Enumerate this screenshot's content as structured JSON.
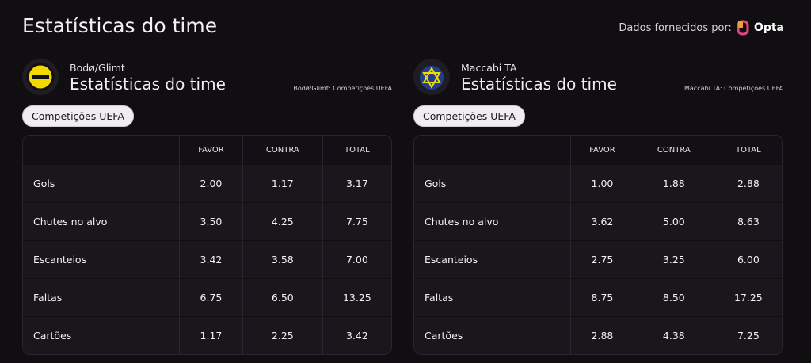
{
  "header": {
    "title": "Estatísticas do time",
    "provider_label": "Dados fornecidos por:",
    "provider": "Opta"
  },
  "teams": [
    {
      "name": "Bodø/Glimt",
      "title": "Estatísticas do time",
      "source": "Bodø/Glimt: Competições UEFA",
      "filter": "Competições UEFA",
      "columns": [
        "FAVOR",
        "CONTRA",
        "TOTAL"
      ],
      "rows": [
        [
          "Gols",
          "2.00",
          "1.17",
          "3.17"
        ],
        [
          "Chutes no alvo",
          "3.50",
          "4.25",
          "7.75"
        ],
        [
          "Escanteios",
          "3.42",
          "3.58",
          "7.00"
        ],
        [
          "Faltas",
          "6.75",
          "6.50",
          "13.25"
        ],
        [
          "Cartões",
          "1.17",
          "2.25",
          "3.42"
        ]
      ]
    },
    {
      "name": "Maccabi TA",
      "title": "Estatísticas do time",
      "source": "Maccabi TA: Competições UEFA",
      "filter": "Competições UEFA",
      "columns": [
        "FAVOR",
        "CONTRA",
        "TOTAL"
      ],
      "rows": [
        [
          "Gols",
          "1.00",
          "1.88",
          "2.88"
        ],
        [
          "Chutes no alvo",
          "3.62",
          "5.00",
          "8.63"
        ],
        [
          "Escanteios",
          "2.75",
          "3.25",
          "6.00"
        ],
        [
          "Faltas",
          "8.75",
          "8.50",
          "17.25"
        ],
        [
          "Cartões",
          "2.88",
          "4.38",
          "7.25"
        ]
      ]
    }
  ]
}
